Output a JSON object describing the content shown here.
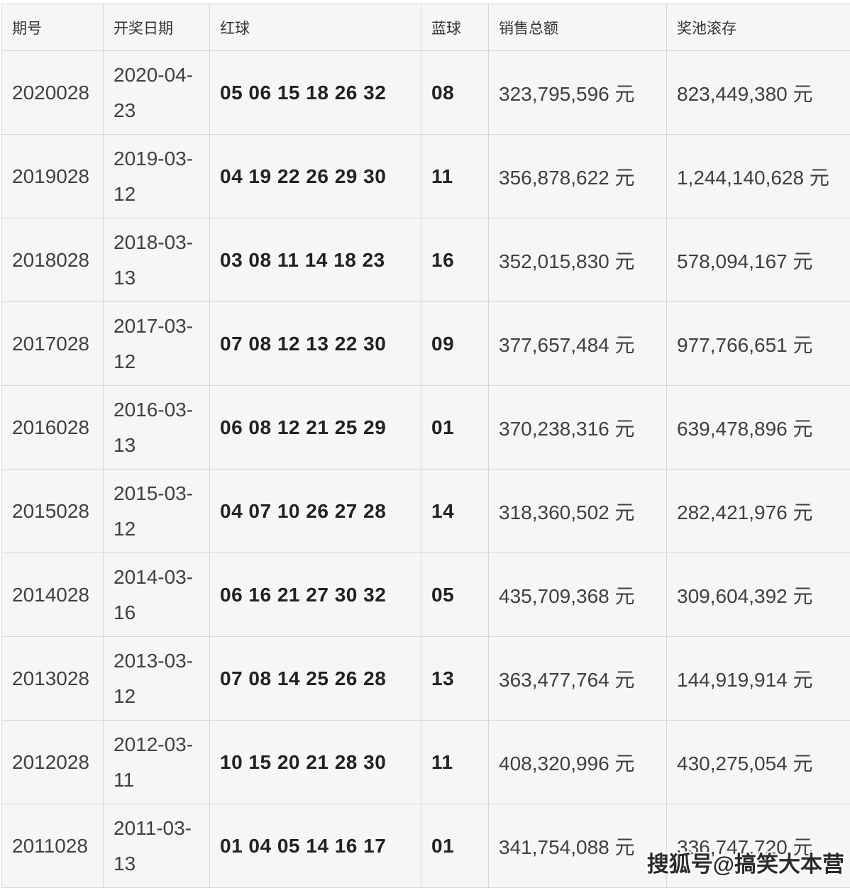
{
  "chart_data": {
    "type": "table",
    "columns": [
      {
        "key": "period",
        "label": "期号"
      },
      {
        "key": "date",
        "label": "开奖日期"
      },
      {
        "key": "red_balls",
        "label": "红球"
      },
      {
        "key": "blue_ball",
        "label": "蓝球"
      },
      {
        "key": "sales_total",
        "label": "销售总额"
      },
      {
        "key": "jackpot_rollover",
        "label": "奖池滚存"
      }
    ],
    "rows": [
      {
        "period": "2020028",
        "date": "2020-04-23",
        "red_balls": "05 06 15 18 26 32",
        "blue_ball": "08",
        "sales_total": "323,795,596 元",
        "jackpot_rollover": "823,449,380 元"
      },
      {
        "period": "2019028",
        "date": "2019-03-12",
        "red_balls": "04 19 22 26 29 30",
        "blue_ball": "11",
        "sales_total": "356,878,622 元",
        "jackpot_rollover": "1,244,140,628 元"
      },
      {
        "period": "2018028",
        "date": "2018-03-13",
        "red_balls": "03 08 11 14 18 23",
        "blue_ball": "16",
        "sales_total": "352,015,830 元",
        "jackpot_rollover": "578,094,167 元"
      },
      {
        "period": "2017028",
        "date": "2017-03-12",
        "red_balls": "07 08 12 13 22 30",
        "blue_ball": "09",
        "sales_total": "377,657,484 元",
        "jackpot_rollover": "977,766,651 元"
      },
      {
        "period": "2016028",
        "date": "2016-03-13",
        "red_balls": "06 08 12 21 25 29",
        "blue_ball": "01",
        "sales_total": "370,238,316 元",
        "jackpot_rollover": "639,478,896 元"
      },
      {
        "period": "2015028",
        "date": "2015-03-12",
        "red_balls": "04 07 10 26 27 28",
        "blue_ball": "14",
        "sales_total": "318,360,502 元",
        "jackpot_rollover": "282,421,976 元"
      },
      {
        "period": "2014028",
        "date": "2014-03-16",
        "red_balls": "06 16 21 27 30 32",
        "blue_ball": "05",
        "sales_total": "435,709,368 元",
        "jackpot_rollover": "309,604,392 元"
      },
      {
        "period": "2013028",
        "date": "2013-03-12",
        "red_balls": "07 08 14 25 26 28",
        "blue_ball": "13",
        "sales_total": "363,477,764 元",
        "jackpot_rollover": "144,919,914 元"
      },
      {
        "period": "2012028",
        "date": "2012-03-11",
        "red_balls": "10 15 20 21 28 30",
        "blue_ball": "11",
        "sales_total": "408,320,996 元",
        "jackpot_rollover": "430,275,054 元"
      },
      {
        "period": "2011028",
        "date": "2011-03-13",
        "red_balls": "01 04 05 14 16 17",
        "blue_ball": "01",
        "sales_total": "341,754,088 元",
        "jackpot_rollover": "336,747,720 元"
      }
    ]
  },
  "watermark": {
    "text": "搜狐号@搞笑大本营"
  },
  "colors": {
    "page_bg": "#ffffff",
    "cell_bg": "#f6f6f7",
    "grid_line": "#d8d8d8",
    "text": "#404040",
    "ball_text": "#222222",
    "watermark_text": "#2b2b2b",
    "watermark_outline": "#ffffff"
  }
}
